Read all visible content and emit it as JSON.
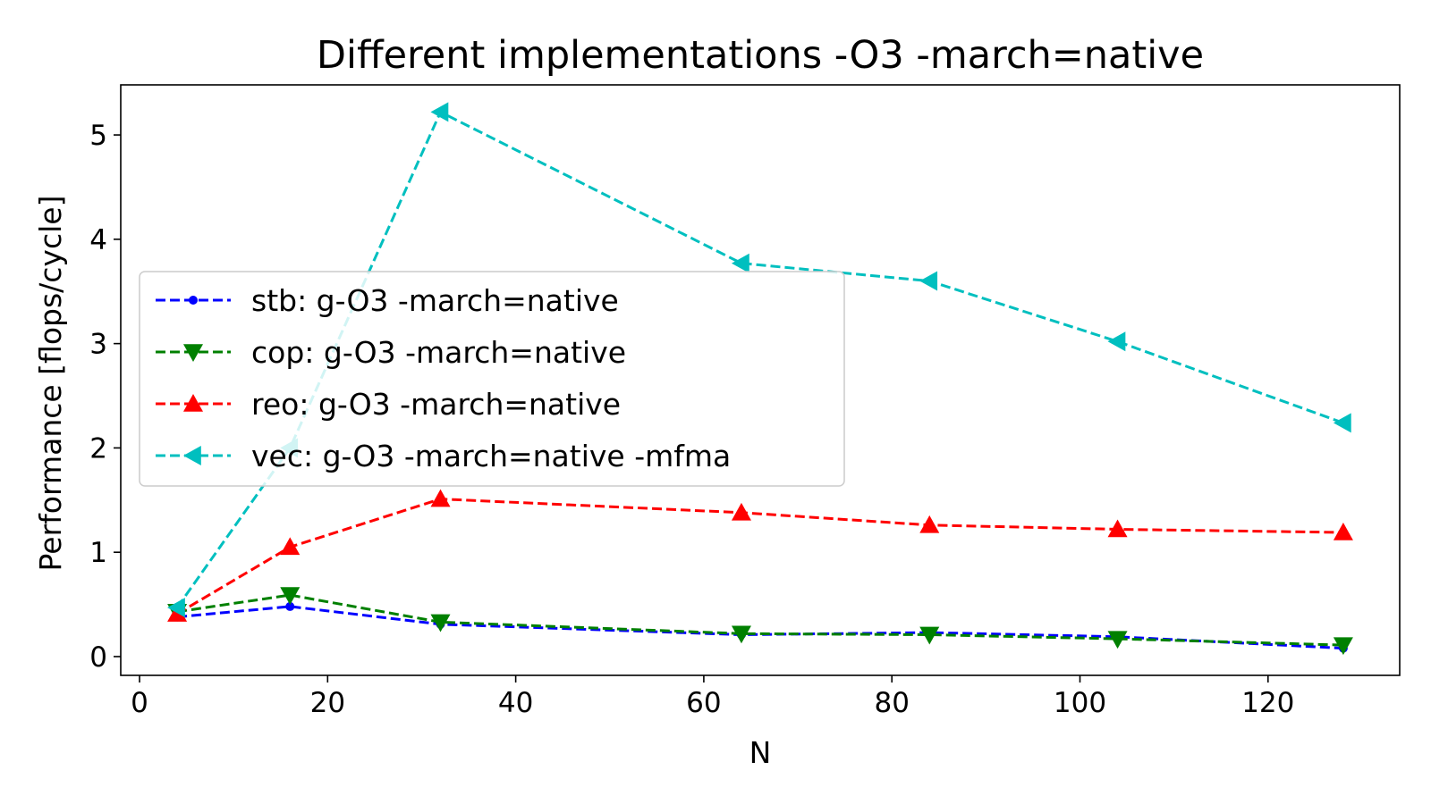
{
  "chart_data": {
    "type": "line",
    "title": "Different implementations -O3 -march=native",
    "xlabel": "N",
    "ylabel": "Performance [flops/cycle]",
    "xlim": [
      -2,
      134
    ],
    "ylim": [
      -0.18,
      5.48
    ],
    "xticks": [
      0,
      20,
      40,
      60,
      80,
      100,
      120
    ],
    "yticks": [
      0,
      1,
      2,
      3,
      4,
      5
    ],
    "grid": false,
    "legend_position": "center-left",
    "x": [
      4,
      16,
      32,
      64,
      84,
      104,
      128
    ],
    "series": [
      {
        "name": "stb:  g-O3 -march=native",
        "values": [
          0.38,
          0.48,
          0.31,
          0.21,
          0.23,
          0.19,
          0.08
        ],
        "color": "#0000ff",
        "marker": "point"
      },
      {
        "name": "cop:  g-O3 -march=native",
        "values": [
          0.43,
          0.59,
          0.33,
          0.22,
          0.21,
          0.17,
          0.11
        ],
        "color": "#008000",
        "marker": "triangle-down"
      },
      {
        "name": "reo:  g-O3 -march=native",
        "values": [
          0.41,
          1.05,
          1.51,
          1.38,
          1.26,
          1.22,
          1.19
        ],
        "color": "#ff0000",
        "marker": "triangle-up"
      },
      {
        "name": "vec:  g-O3 -march=native -mfma",
        "values": [
          0.47,
          2.0,
          5.22,
          3.77,
          3.6,
          3.02,
          2.24
        ],
        "color": "#00bfbf",
        "marker": "triangle-left"
      }
    ]
  }
}
